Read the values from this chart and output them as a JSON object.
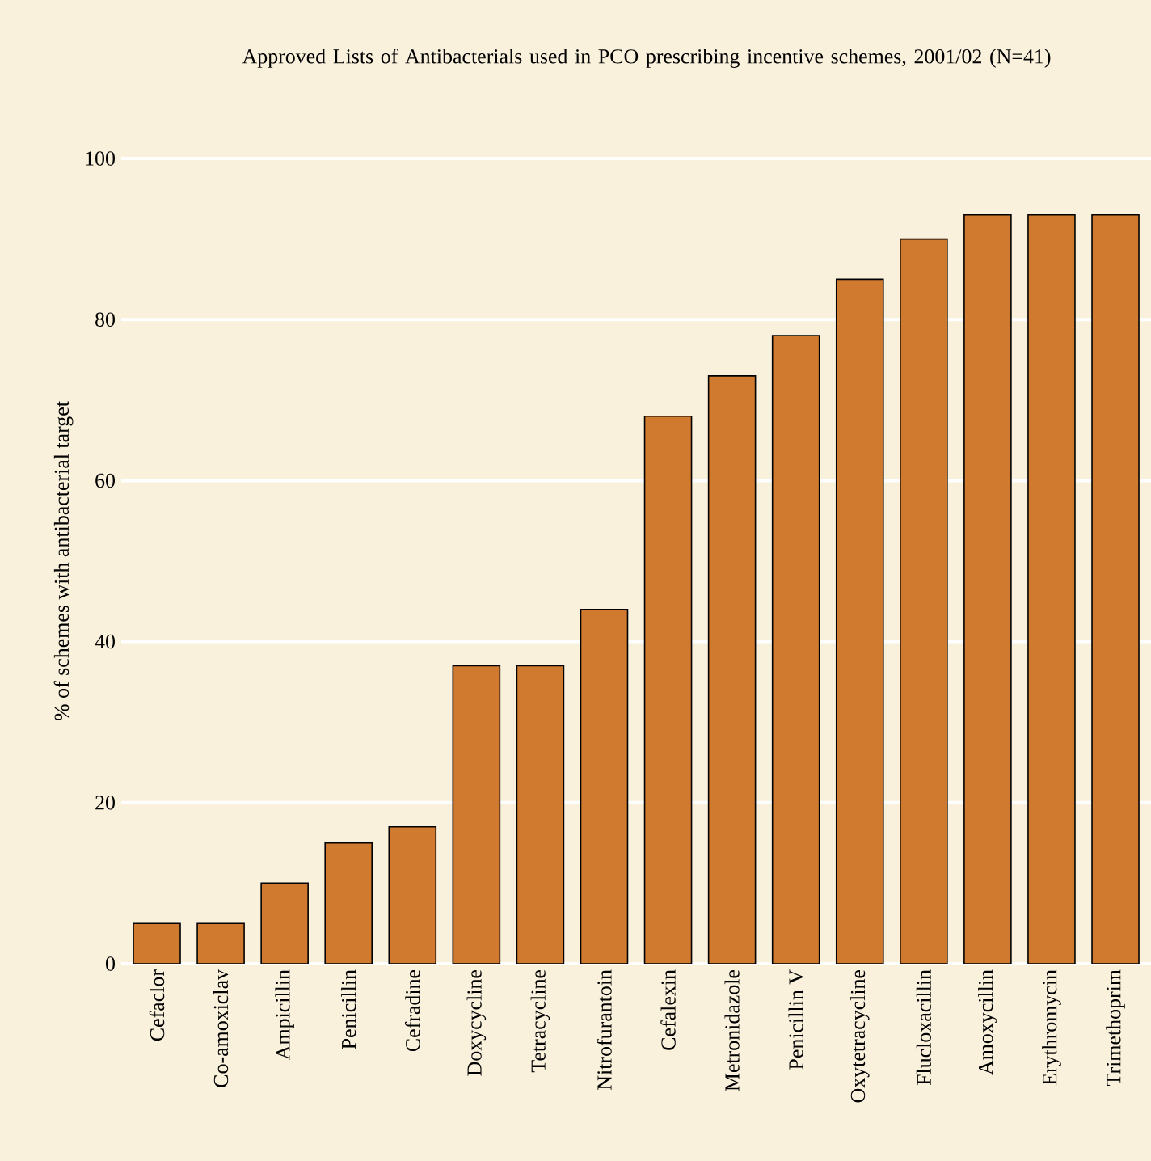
{
  "chart_data": {
    "type": "bar",
    "title": "Approved Lists of Antibacterials used in PCO prescribing incentive schemes, 2001/02 (N=41)",
    "ylabel": "% of schemes with antibacterial target",
    "categories": [
      "Cefaclor",
      "Co-amoxiclav",
      "Ampicillin",
      "Penicillin",
      "Cefradine",
      "Doxycycline",
      "Tetracycline",
      "Nitrofurantoin",
      "Cefalexin",
      "Metronidazole",
      "Penicillin V",
      "Oxytetracycline",
      "Flucloxacillin",
      "Amoxycillin",
      "Erythromycin",
      "Trimethoprim"
    ],
    "values": [
      5,
      5,
      10,
      15,
      17,
      37,
      37,
      44,
      68,
      73,
      78,
      85,
      90,
      93,
      93,
      93
    ],
    "color": "#d07a30",
    "ylim": [
      0,
      100
    ],
    "yticks": [
      0,
      20,
      40,
      60,
      80,
      100
    ],
    "grid": "y"
  }
}
